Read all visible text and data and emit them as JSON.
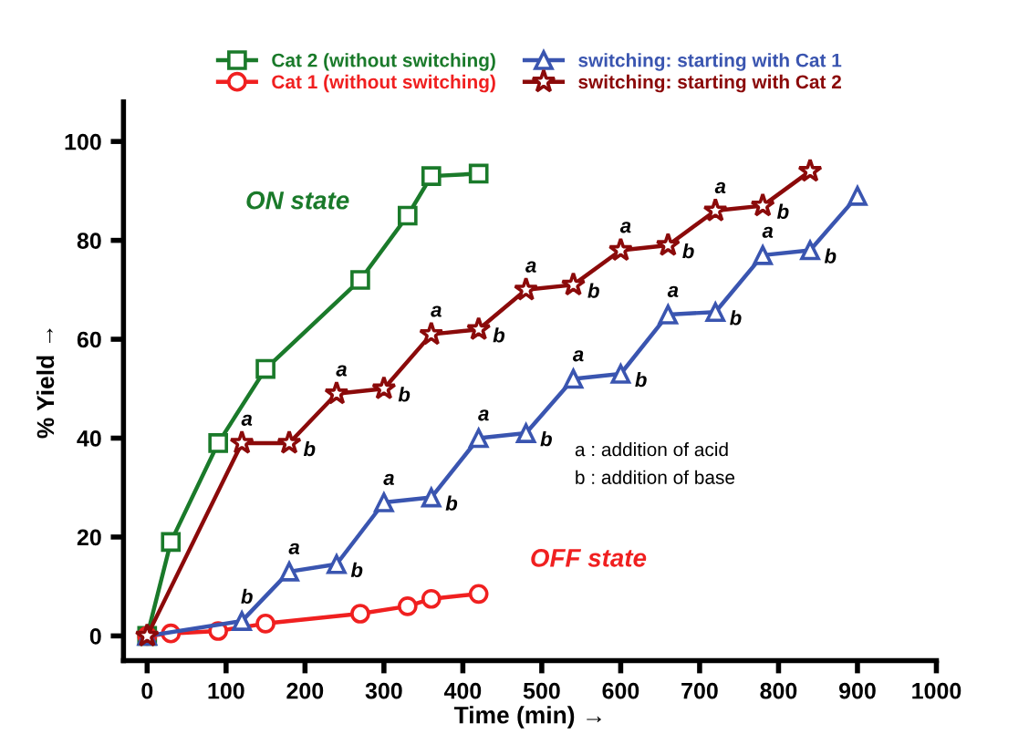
{
  "chart_data": {
    "type": "line",
    "xlabel": "Time (min) →",
    "ylabel": "% Yield →",
    "xlim": [
      -30,
      1000
    ],
    "ylim": [
      -5,
      108
    ],
    "xticks": [
      0,
      100,
      200,
      300,
      400,
      500,
      600,
      700,
      800,
      900,
      1000
    ],
    "yticks": [
      0,
      20,
      40,
      60,
      80,
      100
    ],
    "grid": false,
    "legend": "top",
    "series": [
      {
        "name": "Cat 2 (without switching)",
        "color": "#1a7a2a",
        "marker": "square",
        "x": [
          0,
          30,
          90,
          150,
          270,
          330,
          360,
          420
        ],
        "values": [
          0,
          19,
          39,
          54,
          72,
          85,
          93,
          93.5
        ]
      },
      {
        "name": "Cat 1 (without switching)",
        "color": "#f02020",
        "marker": "circle",
        "x": [
          0,
          30,
          90,
          150,
          270,
          330,
          360,
          420
        ],
        "values": [
          0,
          0.5,
          1,
          2.5,
          4.5,
          6,
          7.5,
          8.5
        ]
      },
      {
        "name": "switching: starting with Cat 1",
        "color": "#3a55b0",
        "marker": "triangle",
        "x": [
          0,
          120,
          180,
          240,
          300,
          360,
          420,
          480,
          540,
          600,
          660,
          720,
          780,
          840,
          900
        ],
        "values": [
          0,
          3,
          13,
          14.5,
          27,
          28,
          40,
          41,
          52,
          53,
          65,
          65.5,
          77,
          78,
          89
        ]
      },
      {
        "name": "switching: starting with Cat 2",
        "color": "#8b0a0a",
        "marker": "star",
        "x": [
          0,
          120,
          180,
          240,
          300,
          360,
          420,
          480,
          540,
          600,
          660,
          720,
          780,
          840
        ],
        "values": [
          0,
          39,
          39,
          49,
          50,
          61,
          62,
          70,
          71,
          78,
          79,
          86,
          87,
          94
        ]
      }
    ],
    "annotations": [
      "ON state",
      "OFF state",
      "a : addition of acid",
      "b : addition of base",
      {
        "text": "a",
        "x": 120,
        "y": 39
      },
      {
        "text": "a",
        "x": 240,
        "y": 49
      },
      {
        "text": "a",
        "x": 360,
        "y": 61
      },
      {
        "text": "a",
        "x": 480,
        "y": 70
      },
      {
        "text": "a",
        "x": 600,
        "y": 78
      },
      {
        "text": "a",
        "x": 720,
        "y": 86
      },
      {
        "text": "b",
        "x": 180,
        "y": 39
      },
      {
        "text": "b",
        "x": 300,
        "y": 50
      },
      {
        "text": "b",
        "x": 420,
        "y": 62
      },
      {
        "text": "b",
        "x": 540,
        "y": 71
      },
      {
        "text": "b",
        "x": 660,
        "y": 79
      },
      {
        "text": "b",
        "x": 780,
        "y": 87
      },
      {
        "text": "b",
        "x": 120,
        "y": 3
      },
      {
        "text": "a",
        "x": 180,
        "y": 13
      },
      {
        "text": "a",
        "x": 300,
        "y": 27
      },
      {
        "text": "a",
        "x": 420,
        "y": 40
      },
      {
        "text": "a",
        "x": 540,
        "y": 52
      },
      {
        "text": "a",
        "x": 660,
        "y": 65
      },
      {
        "text": "a",
        "x": 780,
        "y": 77
      },
      {
        "text": "b",
        "x": 240,
        "y": 14.5
      },
      {
        "text": "b",
        "x": 360,
        "y": 28
      },
      {
        "text": "b",
        "x": 480,
        "y": 41
      },
      {
        "text": "b",
        "x": 600,
        "y": 53
      },
      {
        "text": "b",
        "x": 720,
        "y": 65.5
      },
      {
        "text": "b",
        "x": 840,
        "y": 78
      }
    ]
  }
}
